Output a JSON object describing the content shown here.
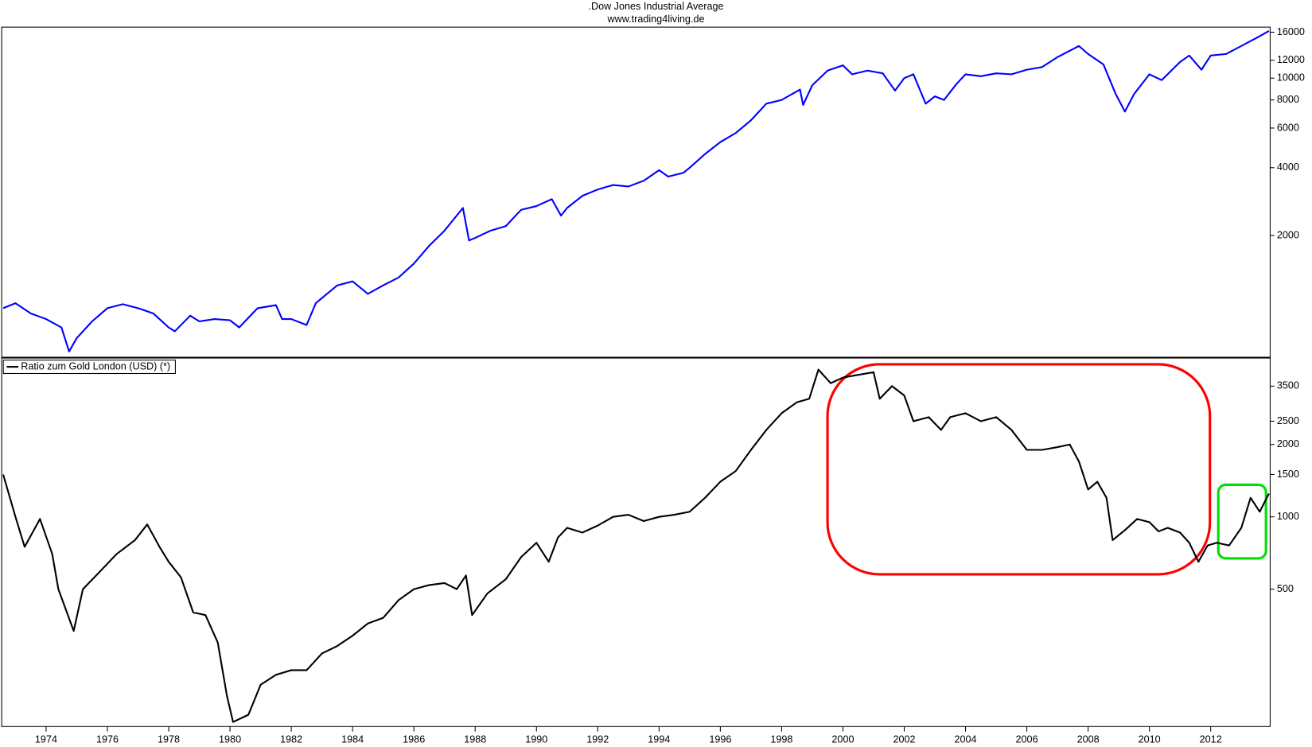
{
  "chart_data": [
    {
      "type": "line",
      "title": ".Dow Jones Industrial Average",
      "subtitle": "www.trading4living.de",
      "log_scale": true,
      "xlim": [
        1972.55,
        2013.94
      ],
      "ylim": [
        573,
        16850
      ],
      "yticks": [
        2000,
        4000,
        6000,
        8000,
        10000,
        12000,
        16000
      ],
      "x": [
        1972.6,
        1973.0,
        1973.5,
        1974.0,
        1974.5,
        1974.75,
        1975.0,
        1975.5,
        1976.0,
        1976.5,
        1977.0,
        1977.5,
        1978.0,
        1978.2,
        1978.7,
        1979.0,
        1979.5,
        1980.0,
        1980.3,
        1980.9,
        1981.5,
        1981.7,
        1982.0,
        1982.5,
        1982.8,
        1983.5,
        1984.0,
        1984.5,
        1985.0,
        1985.5,
        1986.0,
        1986.5,
        1987.0,
        1987.6,
        1987.8,
        1988.0,
        1988.5,
        1989.0,
        1989.5,
        1990.0,
        1990.5,
        1990.8,
        1991.0,
        1991.5,
        1992.0,
        1992.5,
        1993.0,
        1993.5,
        1994.0,
        1994.3,
        1994.8,
        1995.0,
        1995.5,
        1996.0,
        1996.5,
        1997.0,
        1997.5,
        1998.0,
        1998.6,
        1998.7,
        1999.0,
        1999.5,
        2000.0,
        2000.3,
        2000.8,
        2001.3,
        2001.7,
        2002.0,
        2002.3,
        2002.7,
        2003.0,
        2003.3,
        2003.7,
        2004.0,
        2004.5,
        2005.0,
        2005.5,
        2006.0,
        2006.5,
        2007.0,
        2007.7,
        2008.0,
        2008.5,
        2008.9,
        2009.2,
        2009.5,
        2010.0,
        2010.4,
        2011.0,
        2011.3,
        2011.7,
        2012.0,
        2012.5,
        2013.0,
        2013.5,
        2013.9
      ],
      "series": [
        {
          "color": "#0000ff",
          "values": [
            950,
            1000,
            900,
            850,
            780,
            610,
            700,
            830,
            950,
            990,
            950,
            900,
            780,
            750,
            880,
            830,
            850,
            840,
            780,
            950,
            980,
            850,
            850,
            800,
            1000,
            1200,
            1250,
            1100,
            1200,
            1300,
            1500,
            1800,
            2100,
            2650,
            1900,
            1950,
            2100,
            2200,
            2600,
            2700,
            2900,
            2450,
            2650,
            3000,
            3200,
            3350,
            3300,
            3500,
            3900,
            3650,
            3800,
            4000,
            4600,
            5200,
            5700,
            6500,
            7700,
            8000,
            8900,
            7600,
            9300,
            10800,
            11400,
            10400,
            10800,
            10500,
            8800,
            10000,
            10400,
            7700,
            8300,
            8000,
            9400,
            10400,
            10200,
            10500,
            10400,
            10900,
            11200,
            12400,
            13900,
            12800,
            11500,
            8500,
            7100,
            8500,
            10400,
            9800,
            11800,
            12600,
            10900,
            12600,
            12800,
            13900,
            15100,
            16200
          ]
        }
      ]
    },
    {
      "type": "line",
      "log_scale": true,
      "legend": "upper left",
      "xlim": [
        1972.55,
        2013.94
      ],
      "ylim": [
        134,
        4600
      ],
      "yticks": [
        500,
        1000,
        1500,
        2000,
        2500,
        3500
      ],
      "xticks": [
        1974,
        1976,
        1978,
        1980,
        1982,
        1984,
        1986,
        1988,
        1990,
        1992,
        1994,
        1996,
        1998,
        2000,
        2002,
        2004,
        2006,
        2008,
        2010,
        2012
      ],
      "x": [
        1972.6,
        1973.0,
        1973.3,
        1973.8,
        1974.2,
        1974.4,
        1974.9,
        1975.2,
        1975.8,
        1976.3,
        1976.9,
        1977.3,
        1977.7,
        1978.0,
        1978.4,
        1978.8,
        1979.2,
        1979.6,
        1979.9,
        1980.1,
        1980.6,
        1981.0,
        1981.5,
        1982.0,
        1982.5,
        1983.0,
        1983.5,
        1984.0,
        1984.5,
        1985.0,
        1985.5,
        1986.0,
        1986.5,
        1987.0,
        1987.4,
        1987.7,
        1987.9,
        1988.4,
        1989.0,
        1989.5,
        1990.0,
        1990.4,
        1990.7,
        1991.0,
        1991.5,
        1992.0,
        1992.5,
        1993.0,
        1993.5,
        1994.0,
        1994.5,
        1995.0,
        1995.5,
        1996.0,
        1996.5,
        1997.0,
        1997.5,
        1998.0,
        1998.5,
        1998.9,
        1999.2,
        1999.6,
        2000.0,
        2000.5,
        2001.0,
        2001.2,
        2001.6,
        2002.0,
        2002.3,
        2002.8,
        2003.2,
        2003.5,
        2004.0,
        2004.5,
        2005.0,
        2005.5,
        2006.0,
        2006.5,
        2007.0,
        2007.4,
        2007.7,
        2008.0,
        2008.3,
        2008.6,
        2008.8,
        2009.2,
        2009.6,
        2010.0,
        2010.3,
        2010.6,
        2011.0,
        2011.3,
        2011.6,
        2011.9,
        2012.2,
        2012.6,
        2013.0,
        2013.3,
        2013.6,
        2013.9
      ],
      "series": [
        {
          "name": "Ratio zum Gold London (USD) (*)",
          "color": "#000000",
          "values": [
            1500,
            1000,
            750,
            980,
            700,
            500,
            335,
            500,
            600,
            700,
            800,
            930,
            750,
            650,
            560,
            400,
            390,
            300,
            180,
            140,
            150,
            200,
            220,
            230,
            230,
            270,
            290,
            320,
            360,
            380,
            450,
            500,
            520,
            530,
            500,
            570,
            390,
            480,
            550,
            680,
            780,
            650,
            820,
            900,
            860,
            920,
            1000,
            1020,
            960,
            1000,
            1020,
            1050,
            1200,
            1400,
            1550,
            1900,
            2300,
            2700,
            3000,
            3100,
            4100,
            3600,
            3800,
            3900,
            4000,
            3100,
            3500,
            3200,
            2500,
            2600,
            2300,
            2600,
            2700,
            2500,
            2600,
            2300,
            1900,
            1900,
            1950,
            2000,
            1700,
            1300,
            1400,
            1200,
            800,
            880,
            980,
            950,
            870,
            900,
            860,
            780,
            650,
            760,
            780,
            760,
            900,
            1200,
            1050,
            1250
          ]
        }
      ]
    }
  ]
}
